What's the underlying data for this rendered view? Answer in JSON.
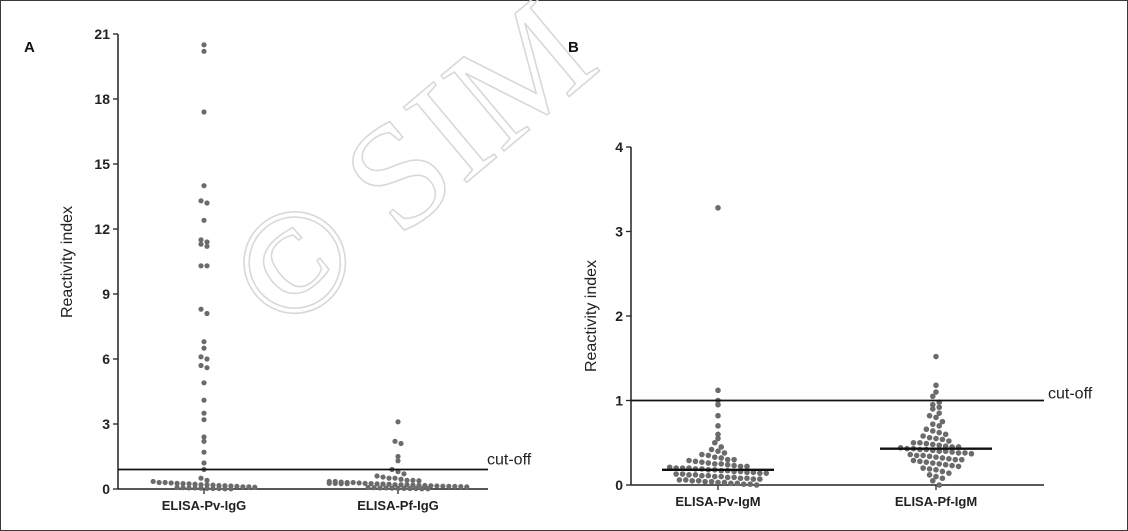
{
  "chart_data": [
    {
      "type": "scatter",
      "panel": "A",
      "categories": [
        "ELISA-Pv-IgG",
        "ELISA-Pf-IgG"
      ],
      "ylabel": "Reactivity index",
      "ylim": [
        0,
        21
      ],
      "yticks": [
        0,
        3,
        6,
        9,
        12,
        15,
        18,
        21
      ],
      "cutoff": 0.9,
      "cutoff_label": "cut-off",
      "series": [
        {
          "category": "ELISA-Pv-IgG",
          "values": [
            20.5,
            20.2,
            17.4,
            14.0,
            13.3,
            13.2,
            12.4,
            11.5,
            11.4,
            11.3,
            11.2,
            10.3,
            10.3,
            8.3,
            8.1,
            6.8,
            6.5,
            6.1,
            6.0,
            5.7,
            5.6,
            4.9,
            4.1,
            3.5,
            3.2,
            2.4,
            2.2,
            1.7,
            1.2,
            0.9,
            0.5,
            0.4,
            0.35,
            0.3,
            0.3,
            0.28,
            0.26,
            0.25,
            0.24,
            0.22,
            0.2,
            0.2,
            0.18,
            0.16,
            0.15,
            0.14,
            0.12,
            0.1,
            0.1,
            0.08,
            0.07,
            0.06,
            0.05,
            0.05,
            0.04,
            0.03,
            0.02,
            0.02,
            0.01,
            0.01
          ]
        },
        {
          "category": "ELISA-Pf-IgG",
          "values": [
            3.1,
            2.2,
            2.1,
            1.5,
            1.3,
            0.9,
            0.8,
            0.7,
            0.6,
            0.55,
            0.5,
            0.5,
            0.45,
            0.4,
            0.4,
            0.38,
            0.35,
            0.35,
            0.32,
            0.3,
            0.3,
            0.28,
            0.26,
            0.25,
            0.24,
            0.23,
            0.22,
            0.2,
            0.2,
            0.19,
            0.18,
            0.17,
            0.16,
            0.15,
            0.14,
            0.13,
            0.12,
            0.12,
            0.11,
            0.1,
            0.1,
            0.09,
            0.08,
            0.08,
            0.07,
            0.06,
            0.05,
            0.05,
            0.04,
            0.03,
            0.03,
            0.02,
            0.02,
            0.01,
            0.01
          ]
        }
      ]
    },
    {
      "type": "scatter",
      "panel": "B",
      "categories": [
        "ELISA-Pv-IgM",
        "ELISA-Pf-IgM"
      ],
      "ylabel": "Reactivity index",
      "ylim": [
        0,
        4
      ],
      "yticks": [
        0,
        1,
        2,
        3,
        4
      ],
      "cutoff": 1.0,
      "cutoff_label": "cut-off",
      "series": [
        {
          "category": "ELISA-Pv-IgM",
          "median": 0.18,
          "values": [
            3.28,
            1.12,
            1.0,
            0.95,
            0.82,
            0.7,
            0.6,
            0.55,
            0.5,
            0.45,
            0.42,
            0.4,
            0.38,
            0.36,
            0.35,
            0.33,
            0.32,
            0.3,
            0.3,
            0.29,
            0.28,
            0.27,
            0.26,
            0.25,
            0.25,
            0.24,
            0.23,
            0.22,
            0.22,
            0.21,
            0.2,
            0.2,
            0.2,
            0.19,
            0.19,
            0.18,
            0.18,
            0.17,
            0.17,
            0.16,
            0.16,
            0.15,
            0.15,
            0.14,
            0.14,
            0.13,
            0.13,
            0.12,
            0.12,
            0.11,
            0.11,
            0.1,
            0.1,
            0.09,
            0.09,
            0.08,
            0.08,
            0.07,
            0.07,
            0.06,
            0.06,
            0.05,
            0.05,
            0.04,
            0.04,
            0.03,
            0.03,
            0.02,
            0.02,
            0.01,
            0.01,
            0.0
          ]
        },
        {
          "category": "ELISA-Pf-IgM",
          "median": 0.43,
          "values": [
            1.52,
            1.18,
            1.1,
            1.05,
            0.98,
            0.95,
            0.92,
            0.9,
            0.85,
            0.82,
            0.8,
            0.75,
            0.72,
            0.7,
            0.66,
            0.64,
            0.62,
            0.6,
            0.58,
            0.56,
            0.55,
            0.54,
            0.52,
            0.5,
            0.5,
            0.49,
            0.48,
            0.47,
            0.46,
            0.45,
            0.45,
            0.44,
            0.43,
            0.43,
            0.42,
            0.42,
            0.41,
            0.4,
            0.4,
            0.39,
            0.38,
            0.38,
            0.37,
            0.36,
            0.35,
            0.35,
            0.34,
            0.33,
            0.32,
            0.31,
            0.3,
            0.3,
            0.29,
            0.28,
            0.27,
            0.26,
            0.25,
            0.24,
            0.23,
            0.22,
            0.2,
            0.19,
            0.18,
            0.16,
            0.14,
            0.12,
            0.1,
            0.08,
            0.05,
            0.0
          ]
        }
      ]
    }
  ],
  "watermark": "© SIM"
}
